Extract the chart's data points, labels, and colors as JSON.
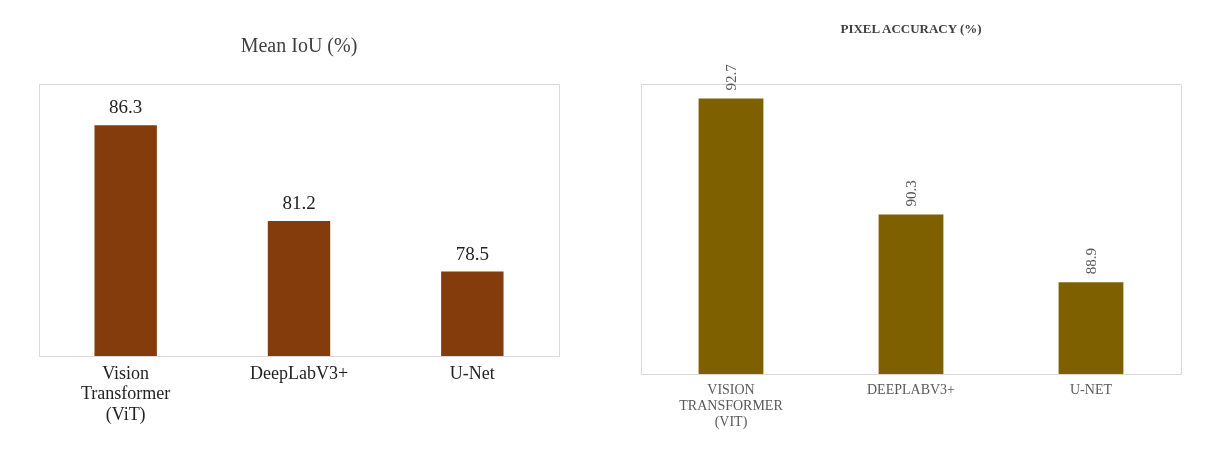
{
  "chart_data": [
    {
      "type": "bar",
      "title": "Mean IoU (%)",
      "categories": [
        "Vision Transformer (ViT)",
        "DeepLabV3+",
        "U-Net"
      ],
      "values": [
        86.3,
        81.2,
        78.5
      ],
      "color": "#843c0c",
      "ylim": [
        74,
        88.5
      ],
      "data_labels": true,
      "tick_labels": "x"
    },
    {
      "type": "bar",
      "title": "PIXEL ACCURACY (%)",
      "categories": [
        "VISION TRANSFORMER (VIT)",
        "DEEPLABV3+",
        "U-NET"
      ],
      "values": [
        92.7,
        90.3,
        88.9
      ],
      "color": "#7f6000",
      "ylim": [
        87,
        93
      ],
      "data_labels": true,
      "tick_labels": "x"
    }
  ]
}
